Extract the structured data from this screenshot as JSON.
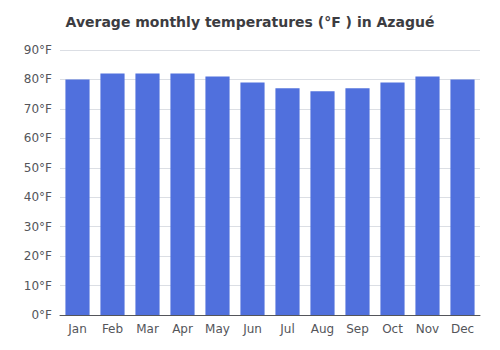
{
  "chart_data": {
    "type": "bar",
    "title": "Average monthly temperatures (°F ) in Azagué",
    "categories": [
      "Jan",
      "Feb",
      "Mar",
      "Apr",
      "May",
      "Jun",
      "Jul",
      "Aug",
      "Sep",
      "Oct",
      "Nov",
      "Dec"
    ],
    "values": [
      80,
      82,
      82,
      82,
      81,
      79,
      77,
      76,
      77,
      79,
      81,
      80
    ],
    "ylim": [
      0,
      90
    ],
    "yticks": [
      {
        "value": 0,
        "label": "0°F"
      },
      {
        "value": 10,
        "label": "10°F"
      },
      {
        "value": 20,
        "label": "20°F"
      },
      {
        "value": 30,
        "label": "30°F"
      },
      {
        "value": 40,
        "label": "40°F"
      },
      {
        "value": 50,
        "label": "50°F"
      },
      {
        "value": 60,
        "label": "60°F"
      },
      {
        "value": 70,
        "label": "70°F"
      },
      {
        "value": 80,
        "label": "80°F"
      },
      {
        "value": 90,
        "label": "90°F"
      }
    ],
    "grid": true
  }
}
